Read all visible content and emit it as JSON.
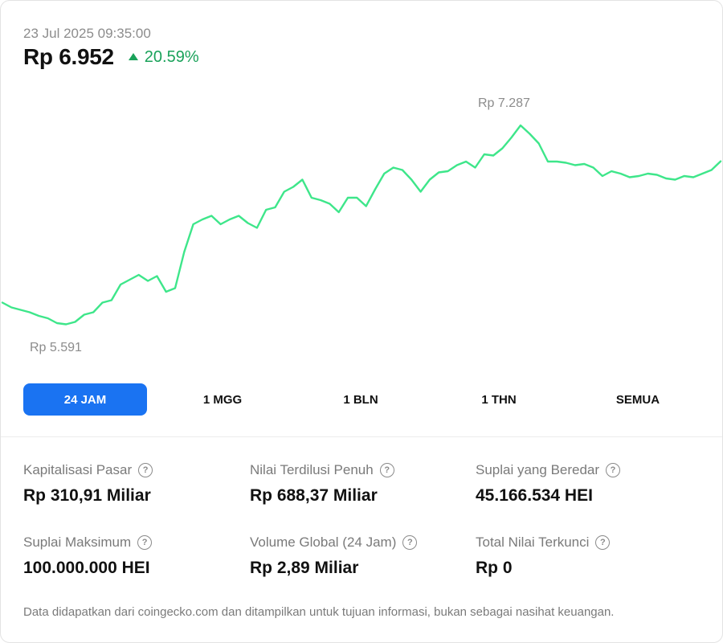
{
  "header": {
    "timestamp": "23 Jul 2025 09:35:00",
    "price": "Rp 6.952",
    "change": "20.59%",
    "change_direction": "up",
    "change_color": "#1aa25a",
    "icon": "arrow-up-icon"
  },
  "chart_data": {
    "type": "line",
    "line_color": "#3ee68a",
    "max_label": "Rp 7.287",
    "min_label": "Rp 5.591",
    "ylim": [
      5550,
      7350
    ],
    "grid": false,
    "series": [
      {
        "values": [
          5780,
          5740,
          5720,
          5700,
          5670,
          5650,
          5610,
          5600,
          5620,
          5680,
          5700,
          5780,
          5800,
          5930,
          5970,
          6010,
          5960,
          6000,
          5870,
          5900,
          6200,
          6430,
          6470,
          6500,
          6430,
          6470,
          6500,
          6440,
          6400,
          6550,
          6570,
          6700,
          6740,
          6800,
          6650,
          6630,
          6600,
          6530,
          6650,
          6650,
          6580,
          6720,
          6850,
          6900,
          6880,
          6800,
          6700,
          6800,
          6860,
          6870,
          6920,
          6950,
          6900,
          7010,
          7000,
          7060,
          7150,
          7250,
          7180,
          7100,
          6950,
          6950,
          6940,
          6920,
          6930,
          6900,
          6830,
          6870,
          6850,
          6820,
          6830,
          6850,
          6840,
          6810,
          6800,
          6830,
          6820,
          6850,
          6880,
          6952
        ]
      }
    ]
  },
  "tabs": [
    {
      "label": "24 JAM",
      "active": true
    },
    {
      "label": "1 MGG",
      "active": false
    },
    {
      "label": "1 BLN",
      "active": false
    },
    {
      "label": "1 THN",
      "active": false
    },
    {
      "label": "SEMUA",
      "active": false
    }
  ],
  "accent_color": "#1a73f2",
  "stats": [
    {
      "label": "Kapitalisasi Pasar",
      "value": "Rp 310,91 Miliar"
    },
    {
      "label": "Nilai Terdilusi Penuh",
      "value": "Rp 688,37 Miliar"
    },
    {
      "label": "Suplai yang Beredar",
      "value": "45.166.534 HEI"
    },
    {
      "label": "Suplai Maksimum",
      "value": "100.000.000 HEI"
    },
    {
      "label": "Volume Global (24 Jam)",
      "value": "Rp 2,89 Miliar"
    },
    {
      "label": "Total Nilai Terkunci",
      "value": "Rp 0"
    }
  ],
  "help_icon_glyph": "?",
  "footer": "Data didapatkan dari coingecko.com dan ditampilkan untuk tujuan informasi, bukan sebagai nasihat keuangan."
}
